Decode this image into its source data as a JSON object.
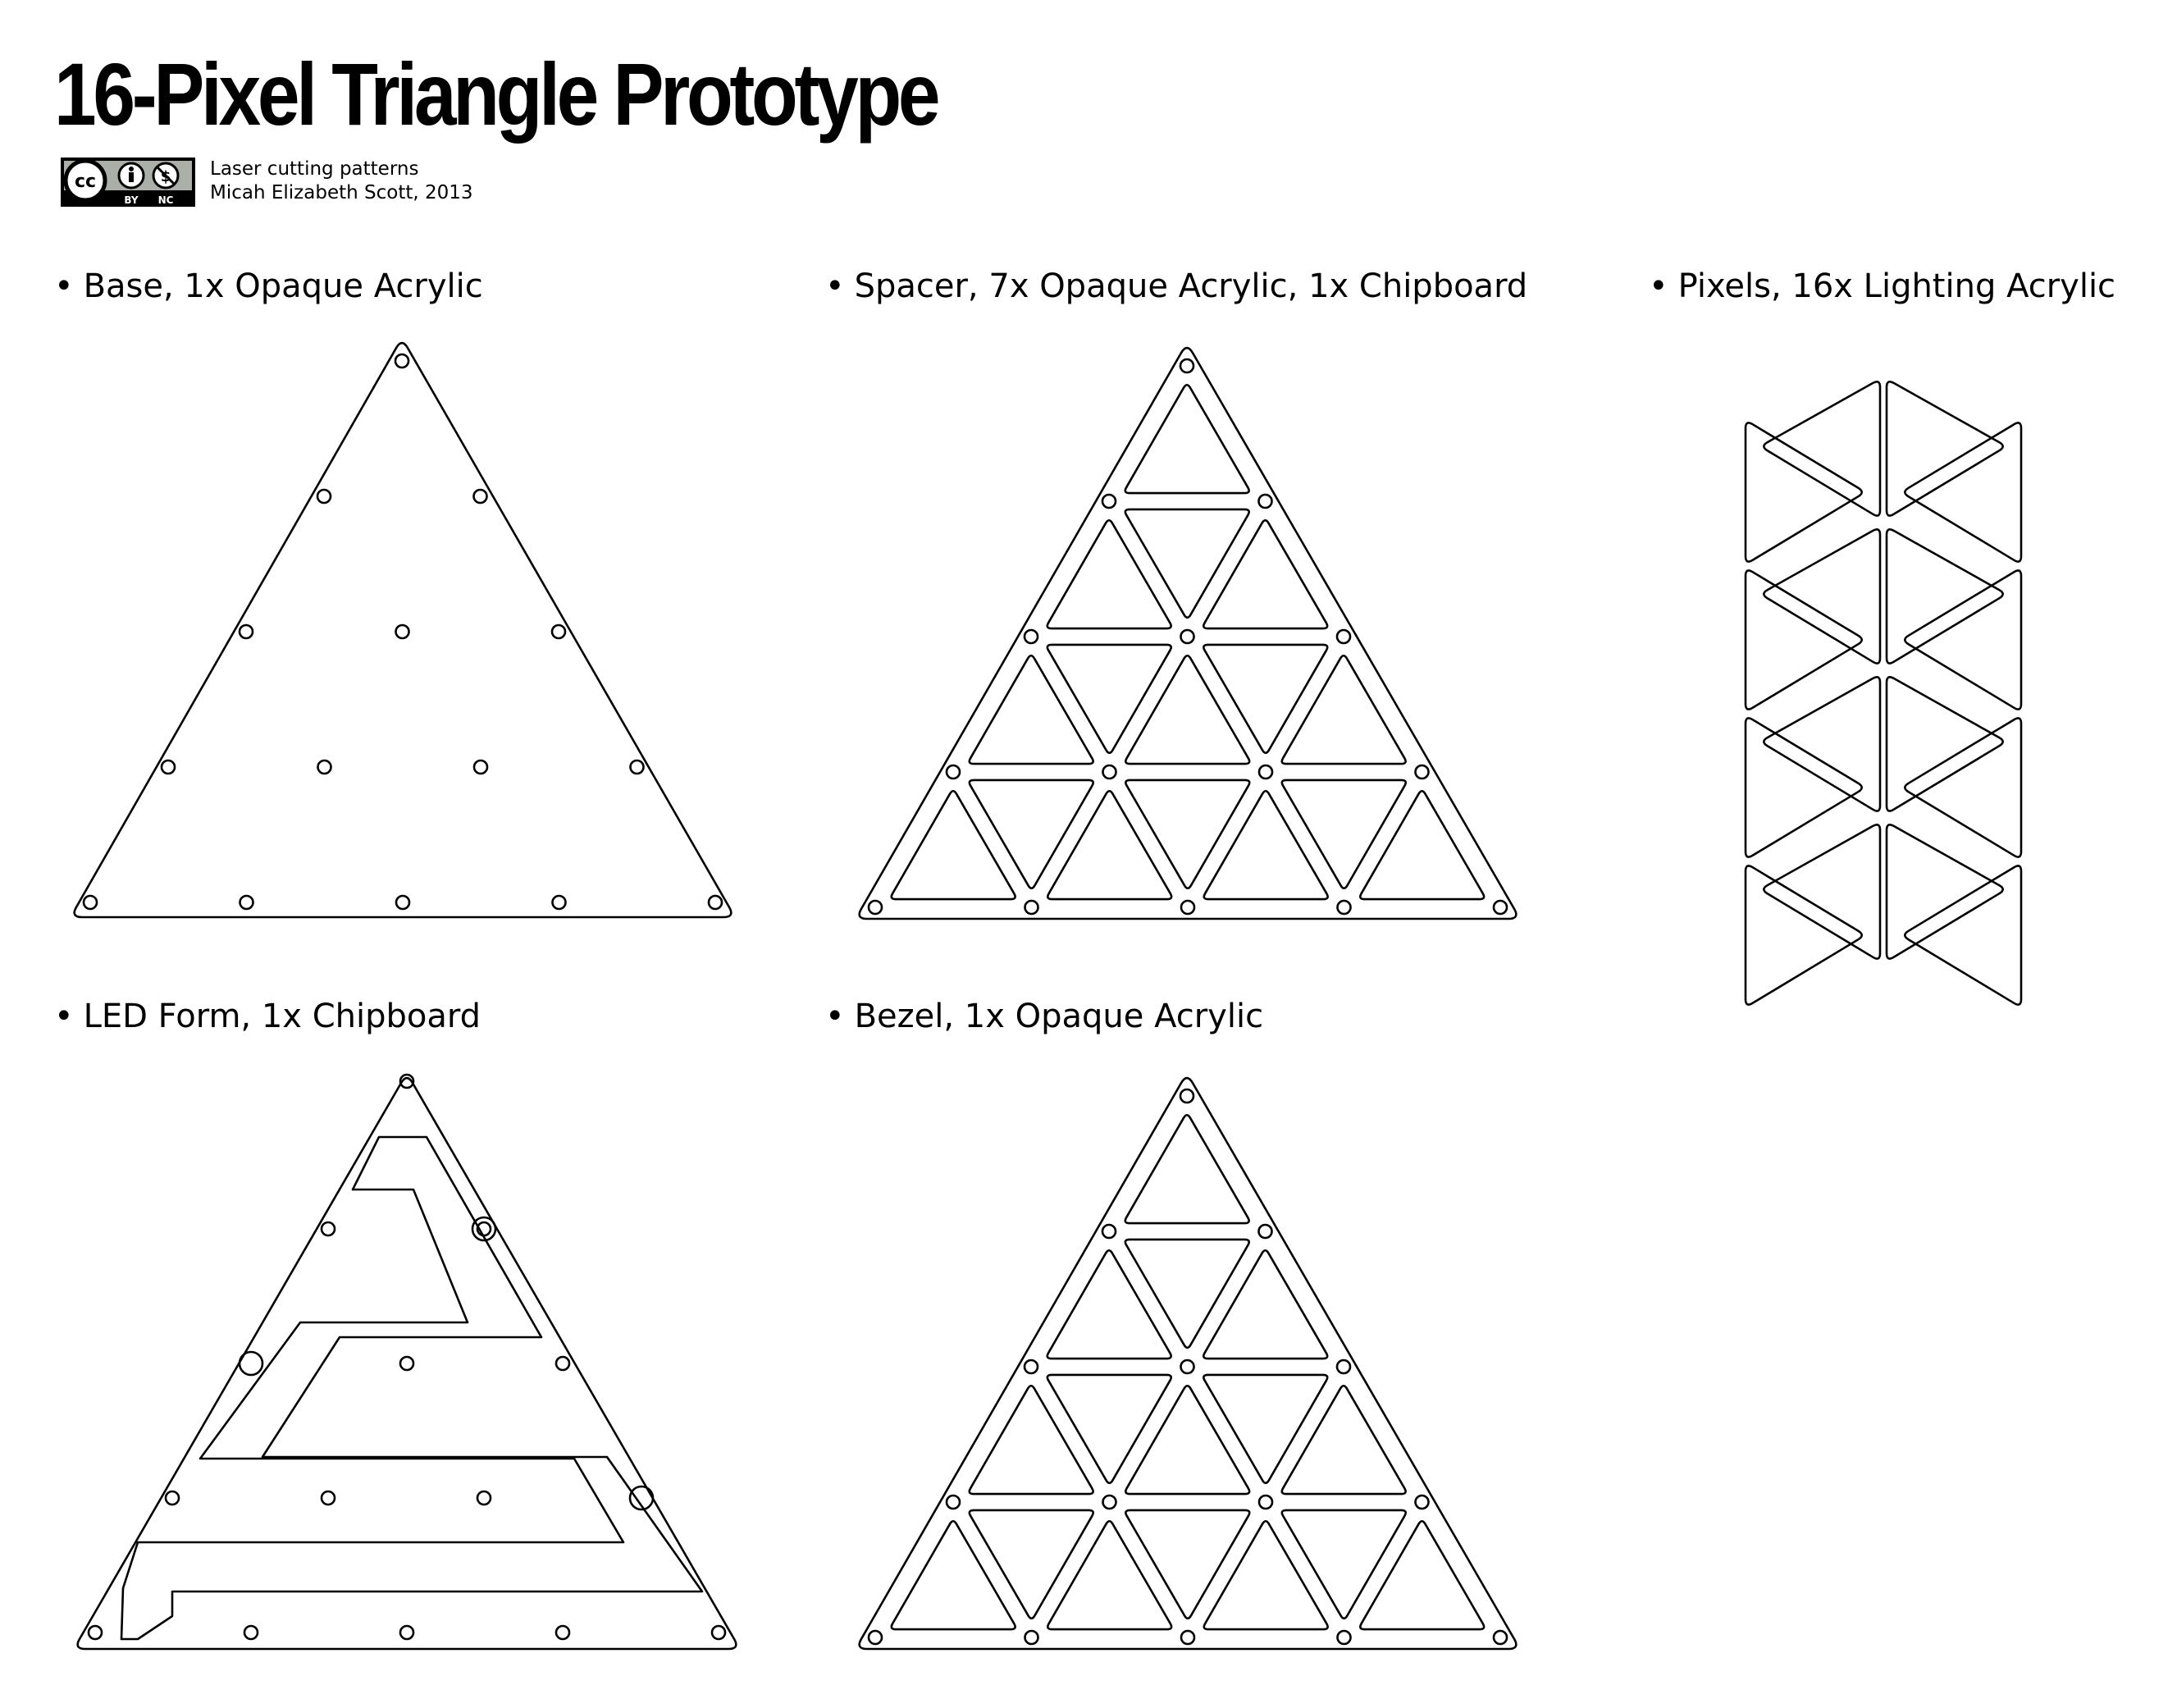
{
  "header": {
    "title": "16-Pixel Triangle Prototype",
    "license": {
      "icon": "creative-commons-by-nc-badge",
      "labels": [
        "BY",
        "NC"
      ]
    },
    "credit_line1": "Laser cutting patterns",
    "credit_line2": "Micah Elizabeth Scott, 2013"
  },
  "parts": {
    "base": {
      "label": "Base, 1x Opaque Acrylic"
    },
    "spacer": {
      "label": "Spacer, 7x Opaque Acrylic, 1x Chipboard"
    },
    "pixels": {
      "label": "Pixels, 16x Lighting Acrylic"
    },
    "led_form": {
      "label": "LED Form, 1x Chipboard"
    },
    "bezel": {
      "label": "Bezel, 1x Opaque Acrylic"
    }
  },
  "colors": {
    "stroke": "#000000",
    "background": "#ffffff",
    "badge_gray": "#aab0a8"
  }
}
